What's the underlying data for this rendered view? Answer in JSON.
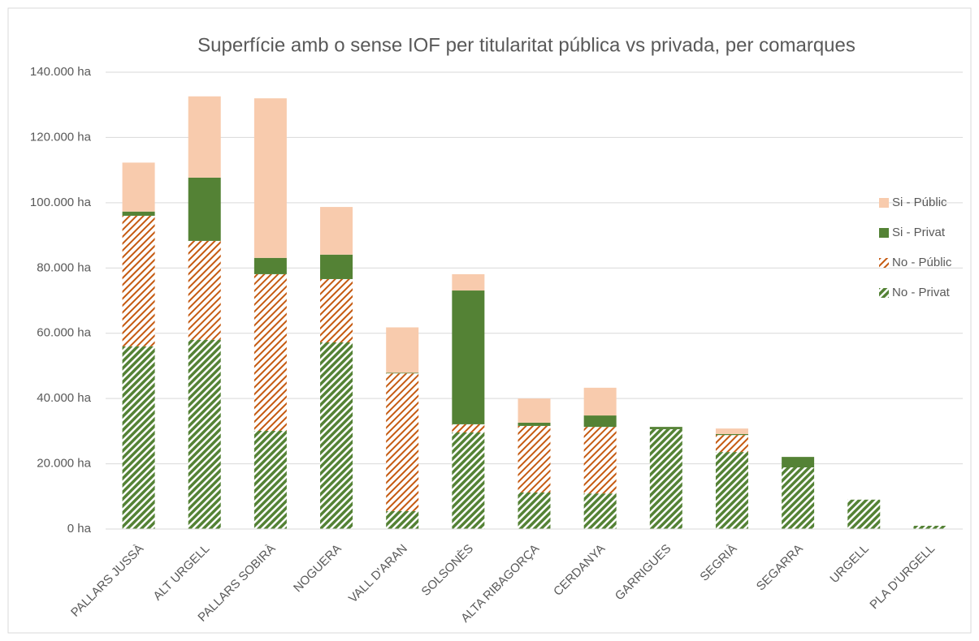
{
  "chart_data": {
    "type": "stacked_bar",
    "title": "Superfície amb o sense IOF per titularitat pública vs privada, per comarques",
    "categories": [
      "PALLARS JUSSÀ",
      "ALT URGELL",
      "PALLARS SOBIRÀ",
      "NOGUERA",
      "VALL D'ARAN",
      "SOLSONÈS",
      "ALTA RIBAGORÇA",
      "CERDANYA",
      "GARRIGUES",
      "SEGRIÀ",
      "SEGARRA",
      "URGELL",
      "PLA D'URGELL"
    ],
    "series": [
      {
        "name": "No - Privat",
        "color": "#548235",
        "hatch": true,
        "values": [
          56000,
          58000,
          30100,
          57200,
          5500,
          29600,
          11200,
          10900,
          30600,
          23600,
          18900,
          9000,
          1000
        ]
      },
      {
        "name": "No - Públic",
        "color": "#c55a11",
        "hatch": true,
        "values": [
          40000,
          30300,
          48000,
          19400,
          42200,
          2500,
          20400,
          20400,
          0,
          5200,
          0,
          0,
          0
        ]
      },
      {
        "name": "Si - Privat",
        "color": "#548235",
        "hatch": false,
        "values": [
          1300,
          19400,
          5000,
          7500,
          200,
          41000,
          1000,
          3500,
          700,
          300,
          3200,
          0,
          0
        ]
      },
      {
        "name": "Si - Públic",
        "color": "#f8cbad",
        "hatch": false,
        "values": [
          15000,
          24900,
          48900,
          14600,
          13900,
          5000,
          7400,
          8500,
          0,
          1700,
          0,
          0,
          0
        ]
      }
    ],
    "ylim": [
      0,
      140000
    ],
    "yticks": [
      {
        "value": 0,
        "label": "0 ha"
      },
      {
        "value": 20000,
        "label": "20.000 ha"
      },
      {
        "value": 40000,
        "label": "40.000 ha"
      },
      {
        "value": 60000,
        "label": "60.000 ha"
      },
      {
        "value": 80000,
        "label": "80.000 ha"
      },
      {
        "value": 100000,
        "label": "100.000 ha"
      },
      {
        "value": 120000,
        "label": "120.000 ha"
      },
      {
        "value": 140000,
        "label": "140.000 ha"
      }
    ],
    "grid": true,
    "legend": "right"
  }
}
